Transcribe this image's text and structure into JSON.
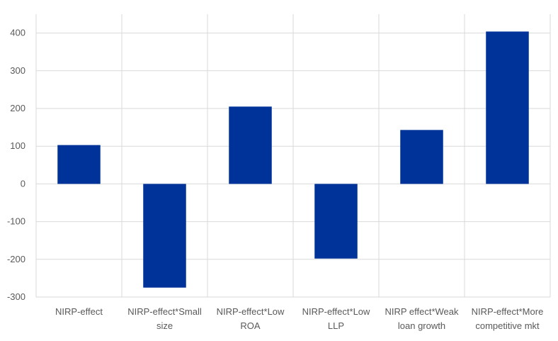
{
  "chart_data": {
    "type": "bar",
    "title": "",
    "xlabel": "",
    "ylabel": "",
    "categories": [
      [
        "NIRP-effect"
      ],
      [
        "NIRP-effect*Small",
        "size"
      ],
      [
        "NIRP-effect*Low",
        "ROA"
      ],
      [
        "NIRP-effect*Low",
        "LLP"
      ],
      [
        "NIRP effect*Weak",
        "loan growth"
      ],
      [
        "NIRP-effect*More",
        "competitive mkt"
      ]
    ],
    "series": [
      {
        "values": [
          103,
          -275,
          205,
          -198,
          143,
          404
        ]
      }
    ],
    "ylim": [
      -300,
      450
    ],
    "yticks": [
      -300,
      -200,
      -100,
      0,
      100,
      200,
      300,
      400
    ],
    "ytick_labels": [
      "-300",
      "-200",
      "-100",
      "0",
      "100",
      "200",
      "300",
      "400"
    ],
    "bar_color": "#003399",
    "grid": true,
    "legend": "none"
  }
}
